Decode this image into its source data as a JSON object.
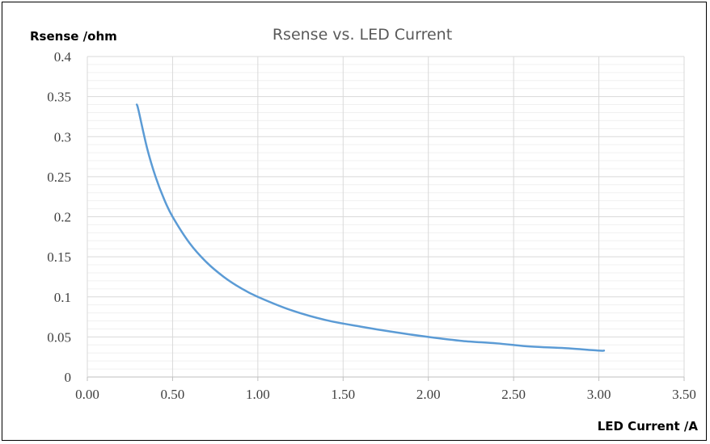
{
  "chart_data": {
    "type": "line",
    "title": "Rsense vs. LED Current",
    "xlabel": "LED Current /A",
    "ylabel": "Rsense /ohm",
    "xlim": [
      0,
      3.5
    ],
    "ylim": [
      0,
      0.4
    ],
    "x_ticks": [
      "0.00",
      "0.50",
      "1.00",
      "1.50",
      "2.00",
      "2.50",
      "3.00",
      "3.50"
    ],
    "y_ticks": [
      "0",
      "0.05",
      "0.1",
      "0.15",
      "0.2",
      "0.25",
      "0.3",
      "0.35",
      "0.4"
    ],
    "grid": true,
    "legend": "none",
    "series": [
      {
        "color": "#5b9bd5",
        "x": [
          0.29,
          0.3,
          0.35,
          0.4,
          0.45,
          0.5,
          0.6,
          0.7,
          0.8,
          0.9,
          1.0,
          1.2,
          1.4,
          1.6,
          1.8,
          2.0,
          2.2,
          2.4,
          2.6,
          2.8,
          3.0,
          3.03
        ],
        "y": [
          0.34,
          0.333,
          0.286,
          0.25,
          0.222,
          0.2,
          0.167,
          0.143,
          0.125,
          0.111,
          0.1,
          0.083,
          0.071,
          0.063,
          0.056,
          0.05,
          0.045,
          0.042,
          0.038,
          0.036,
          0.033,
          0.033
        ]
      }
    ]
  }
}
